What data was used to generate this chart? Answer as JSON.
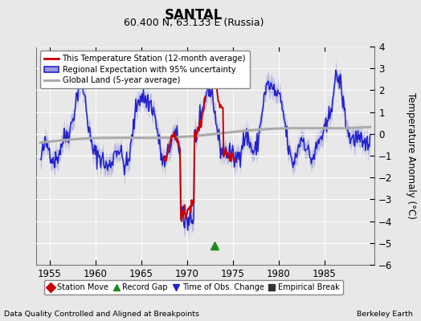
{
  "title": "SANTAL",
  "subtitle": "60.400 N, 63.133 E (Russia)",
  "ylabel": "Temperature Anomaly (°C)",
  "xlabel_note": "Data Quality Controlled and Aligned at Breakpoints",
  "source_note": "Berkeley Earth",
  "xlim": [
    1953.5,
    1990.5
  ],
  "ylim": [
    -6,
    4
  ],
  "yticks": [
    -6,
    -5,
    -4,
    -3,
    -2,
    -1,
    0,
    1,
    2,
    3,
    4
  ],
  "xticks": [
    1955,
    1960,
    1965,
    1970,
    1975,
    1980,
    1985
  ],
  "regional_color": "#2222cc",
  "regional_fill_color": "#9999dd",
  "station_color": "#cc0000",
  "global_color": "#aaaaaa",
  "bg_color": "#e8e8e8",
  "plot_bg_color": "#e8e8e8",
  "legend_entries": [
    "This Temperature Station (12-month average)",
    "Regional Expectation with 95% uncertainty",
    "Global Land (5-year average)"
  ],
  "marker_legend": [
    {
      "marker": "D",
      "color": "#cc0000",
      "label": "Station Move"
    },
    {
      "marker": "^",
      "color": "#228822",
      "label": "Record Gap"
    },
    {
      "marker": "v",
      "color": "#2222cc",
      "label": "Time of Obs. Change"
    },
    {
      "marker": "s",
      "color": "#333333",
      "label": "Empirical Break"
    }
  ],
  "record_gap_x": 1973.0,
  "record_gap_y": -5.1,
  "seed": 42
}
